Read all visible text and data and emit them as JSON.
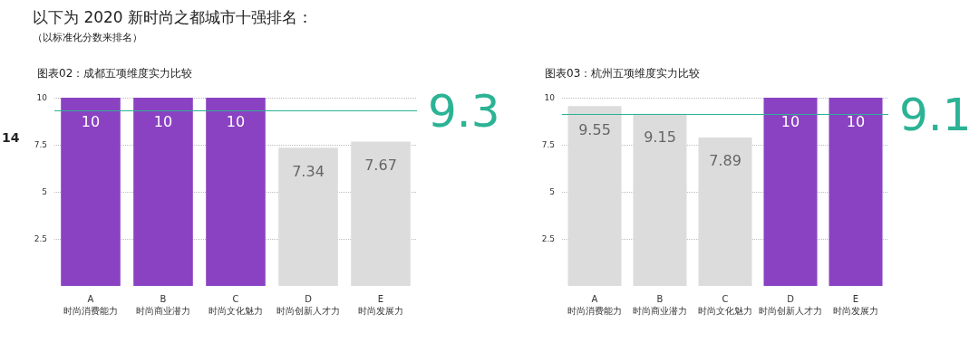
{
  "chart_data": [
    {
      "type": "other",
      "title": "以下为 2020 新时尚之都城市十强排名：",
      "subtitle": "（以标准化分数来排名）",
      "annotations": [
        "14"
      ]
    },
    {
      "type": "bar",
      "title": "图表02：成都五项维度实力比较",
      "categories": [
        "A\n时尚消费能力",
        "B\n时尚商业潜力",
        "C\n时尚文化魅力",
        "D\n时尚创新人才力",
        "E\n时尚发展力"
      ],
      "values": [
        10,
        10,
        10,
        7.34,
        7.67
      ],
      "colors": [
        "#8a42c2",
        "#8a42c2",
        "#8a42c2",
        "#dcdcdc",
        "#dcdcdc"
      ],
      "ylim": [
        0,
        10
      ],
      "yticks": [
        2.5,
        5,
        7.5,
        10
      ],
      "grid": "y",
      "data_labels": true,
      "ref_lines": [
        {
          "axis": "y",
          "value": 9.3,
          "label": "9.3",
          "color": "#2bb394"
        }
      ]
    },
    {
      "type": "bar",
      "title": "图表03：杭州五项维度实力比较",
      "categories": [
        "A\n时尚消费能力",
        "B\n时尚商业潜力",
        "C\n时尚文化魅力",
        "D\n时尚创新人才力",
        "E\n时尚发展力"
      ],
      "values": [
        9.55,
        9.15,
        7.89,
        10,
        10
      ],
      "colors": [
        "#dcdcdc",
        "#dcdcdc",
        "#dcdcdc",
        "#8a42c2",
        "#8a42c2"
      ],
      "ylim": [
        0,
        10
      ],
      "yticks": [
        2.5,
        5,
        7.5,
        10
      ],
      "grid": "y",
      "data_labels": true,
      "ref_lines": [
        {
          "axis": "y",
          "value": 9.1,
          "label": "9.1",
          "color": "#2bb394"
        }
      ]
    }
  ]
}
